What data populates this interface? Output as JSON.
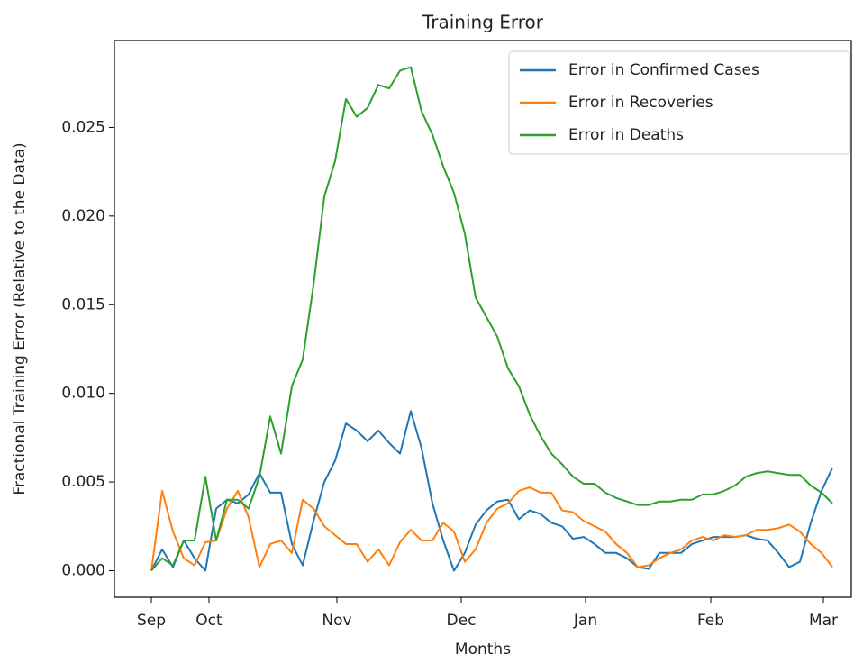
{
  "chart_data": {
    "type": "line",
    "title": "Training Error",
    "xlabel": "Months",
    "ylabel": "Fractional Training Error (Relative to the Data)",
    "x": [
      0,
      3,
      6,
      9,
      12,
      15,
      18,
      21,
      24,
      27,
      30,
      33,
      36,
      39,
      42,
      45,
      48,
      51,
      54,
      57,
      60,
      63,
      66,
      69,
      72,
      75,
      78,
      81,
      84,
      87,
      90,
      93,
      96,
      99,
      102,
      105,
      108,
      111,
      114,
      117,
      120,
      123,
      126,
      129,
      132,
      135,
      138,
      141,
      144,
      147,
      150,
      153,
      156,
      159,
      162,
      165,
      168,
      171,
      174,
      177,
      180,
      183,
      186,
      189
    ],
    "xlim": [
      -10.25,
      194.25
    ],
    "xticks": [
      {
        "value": 0,
        "label": "Sep"
      },
      {
        "value": 16,
        "label": "Oct"
      },
      {
        "value": 51.5,
        "label": "Nov"
      },
      {
        "value": 86,
        "label": "Dec"
      },
      {
        "value": 120.5,
        "label": "Jan"
      },
      {
        "value": 155.25,
        "label": "Feb"
      },
      {
        "value": 186.5,
        "label": "Mar"
      }
    ],
    "ylim": [
      -0.0015,
      0.0299
    ],
    "yticks": [
      {
        "value": 0,
        "label": "0.000"
      },
      {
        "value": 0.005,
        "label": "0.005"
      },
      {
        "value": 0.01,
        "label": "0.010"
      },
      {
        "value": 0.015,
        "label": "0.015"
      },
      {
        "value": 0.02,
        "label": "0.020"
      },
      {
        "value": 0.025,
        "label": "0.025"
      }
    ],
    "legend": "upper right",
    "series": [
      {
        "name": "Error in Confirmed Cases",
        "color": "#1f77b4",
        "values": [
          0,
          0.0012,
          0.0002,
          0.0017,
          0.0007,
          0,
          0.0035,
          0.004,
          0.0038,
          0.0043,
          0.0055,
          0.0044,
          0.0044,
          0.0015,
          0.0003,
          0.0028,
          0.005,
          0.0062,
          0.0083,
          0.0079,
          0.0073,
          0.0079,
          0.0072,
          0.0066,
          0.009,
          0.0069,
          0.0038,
          0.0017,
          0,
          0.001,
          0.0026,
          0.0034,
          0.0039,
          0.004,
          0.0029,
          0.0034,
          0.0032,
          0.0027,
          0.0025,
          0.0018,
          0.0019,
          0.0015,
          0.001,
          0.001,
          0.0007,
          0.0002,
          0.0001,
          0.001,
          0.001,
          0.001,
          0.0015,
          0.0017,
          0.0019,
          0.0019,
          0.0019,
          0.002,
          0.0018,
          0.0017,
          0.001,
          0.0002,
          0.0005,
          0.0027,
          0.0045,
          0.0058
        ]
      },
      {
        "name": "Error in Recoveries",
        "color": "#ff7f0e",
        "values": [
          0,
          0.0045,
          0.0022,
          0.0007,
          0.0003,
          0.0016,
          0.0017,
          0.0035,
          0.0045,
          0.003,
          0.0002,
          0.0015,
          0.0017,
          0.001,
          0.004,
          0.0035,
          0.0025,
          0.002,
          0.0015,
          0.0015,
          0.0005,
          0.0012,
          0.0003,
          0.0016,
          0.0023,
          0.0017,
          0.0017,
          0.0027,
          0.0022,
          0.0005,
          0.0012,
          0.0027,
          0.0035,
          0.0038,
          0.0045,
          0.0047,
          0.0044,
          0.0044,
          0.0034,
          0.0033,
          0.0028,
          0.0025,
          0.0022,
          0.0015,
          0.001,
          0.0002,
          0.0003,
          0.0007,
          0.001,
          0.0012,
          0.0017,
          0.0019,
          0.0017,
          0.002,
          0.0019,
          0.002,
          0.0023,
          0.0023,
          0.0024,
          0.0026,
          0.0022,
          0.0015,
          0.001,
          0.0002
        ]
      },
      {
        "name": "Error in Deaths",
        "color": "#2ca02c",
        "values": [
          0,
          0.0007,
          0.0003,
          0.0017,
          0.0017,
          0.0053,
          0.0017,
          0.004,
          0.004,
          0.0035,
          0.0053,
          0.0087,
          0.0066,
          0.0104,
          0.0119,
          0.0161,
          0.0211,
          0.0231,
          0.0266,
          0.0256,
          0.0261,
          0.0274,
          0.0272,
          0.0282,
          0.0284,
          0.0259,
          0.0246,
          0.0228,
          0.0213,
          0.019,
          0.0154,
          0.0143,
          0.0132,
          0.0114,
          0.0104,
          0.0088,
          0.0076,
          0.0066,
          0.006,
          0.0053,
          0.0049,
          0.0049,
          0.0044,
          0.0041,
          0.0039,
          0.0037,
          0.0037,
          0.0039,
          0.0039,
          0.004,
          0.004,
          0.0043,
          0.0043,
          0.0045,
          0.0048,
          0.0053,
          0.0055,
          0.0056,
          0.0055,
          0.0054,
          0.0054,
          0.0048,
          0.0044,
          0.0038
        ]
      }
    ]
  }
}
